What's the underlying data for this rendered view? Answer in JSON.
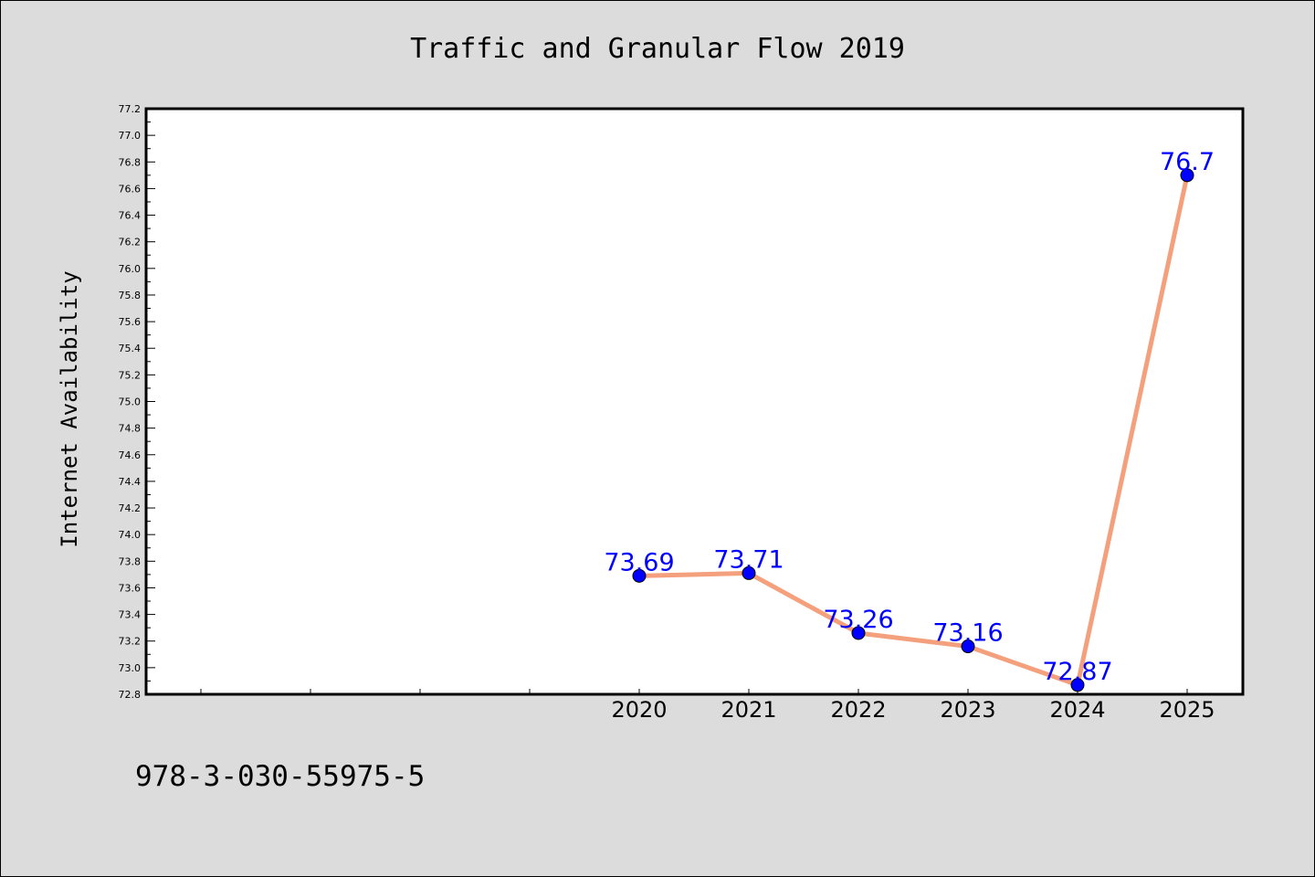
{
  "footer_code": "978-3-030-55975-5",
  "chart_data": {
    "type": "line",
    "title": "Traffic and Granular Flow 2019",
    "xlabel": "",
    "ylabel": "Internet Availability",
    "x_ticks": [
      "",
      "",
      "",
      "",
      "2020",
      "2021",
      "2022",
      "2023",
      "2024",
      "2025"
    ],
    "x": [
      "2020",
      "2021",
      "2022",
      "2023",
      "2024",
      "2025"
    ],
    "series": [
      {
        "values": [
          73.69,
          73.71,
          73.26,
          73.16,
          72.87,
          76.7
        ],
        "labels": [
          "73.69",
          "73.71",
          "73.26",
          "73.16",
          "72.87",
          "76.7"
        ],
        "line_color": "#f4a07c",
        "marker_color": "#0000ff"
      }
    ],
    "ylim": [
      72.8,
      77.2
    ],
    "y_ticks": [
      "72.8",
      "73.0",
      "73.2",
      "73.4",
      "73.6",
      "73.8",
      "74.0",
      "74.2",
      "74.4",
      "74.6",
      "74.8",
      "75.0",
      "75.2",
      "75.4",
      "75.6",
      "75.8",
      "76.0",
      "76.2",
      "76.4",
      "76.6",
      "76.8",
      "77.0",
      "77.2"
    ],
    "grid": false,
    "legend": "none",
    "colors": {
      "background": "#dcdcdc",
      "plot_background": "#ffffff",
      "line": "#f4a07c",
      "marker": "#0000ff",
      "data_label": "#0000ff"
    }
  }
}
